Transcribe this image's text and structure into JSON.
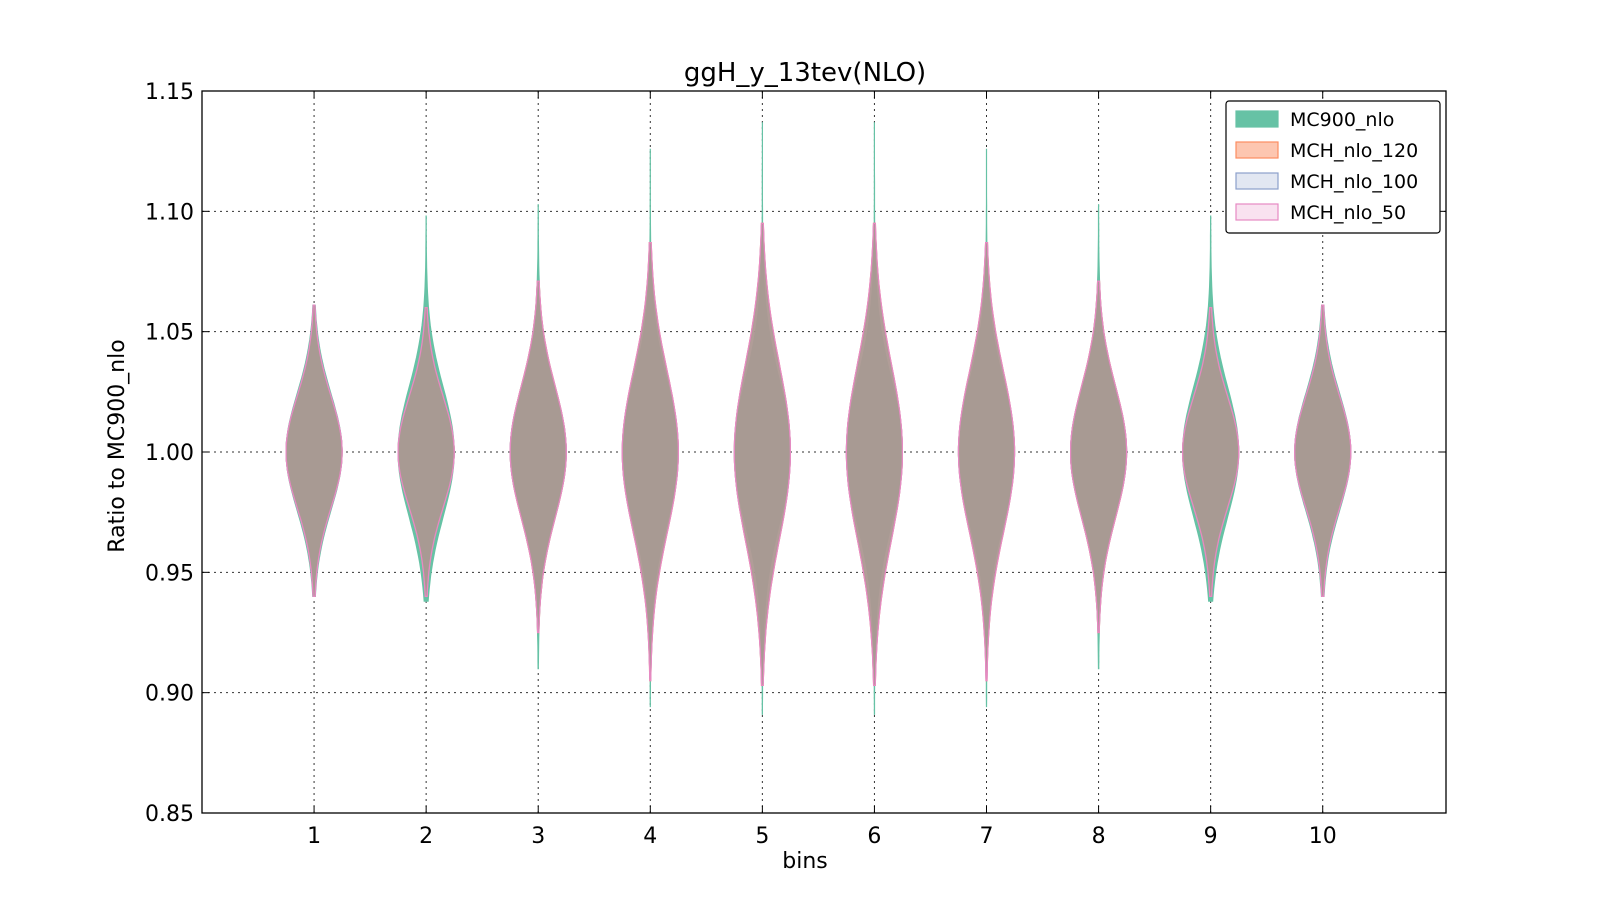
{
  "chart_data": {
    "type": "violin",
    "title": "ggH_y_13tev(NLO)",
    "xlabel": "bins",
    "ylabel": "Ratio to MC900_nlo",
    "categories": [
      "1",
      "2",
      "3",
      "4",
      "5",
      "6",
      "7",
      "8",
      "9",
      "10"
    ],
    "ylim": [
      0.85,
      1.15
    ],
    "xlim": [
      0,
      11.1
    ],
    "yticks": [
      "0.85",
      "0.90",
      "0.95",
      "1.00",
      "1.05",
      "1.10",
      "1.15"
    ],
    "grid": true,
    "legend_position": "top-right",
    "series": [
      {
        "name": "MC900_nlo",
        "color": "#66c2a5",
        "center": 1.0,
        "min": [
          0.94,
          0.938,
          0.91,
          0.894,
          0.891,
          0.891,
          0.894,
          0.91,
          0.938,
          0.94
        ],
        "max": [
          1.061,
          1.098,
          1.103,
          1.126,
          1.137,
          1.137,
          1.126,
          1.103,
          1.098,
          1.061
        ]
      },
      {
        "name": "MCH_nlo_120",
        "color": "#fc8d62",
        "center": 1.0,
        "min": [
          0.94,
          0.94,
          0.925,
          0.905,
          0.903,
          0.903,
          0.905,
          0.925,
          0.94,
          0.94
        ],
        "max": [
          1.061,
          1.06,
          1.071,
          1.087,
          1.095,
          1.095,
          1.087,
          1.071,
          1.06,
          1.061
        ]
      },
      {
        "name": "MCH_nlo_100",
        "color": "#8da0cb",
        "center": 1.0,
        "min": [
          0.94,
          0.94,
          0.926,
          0.906,
          0.904,
          0.904,
          0.906,
          0.926,
          0.94,
          0.94
        ],
        "max": [
          1.061,
          1.059,
          1.07,
          1.086,
          1.094,
          1.094,
          1.086,
          1.07,
          1.059,
          1.061
        ]
      },
      {
        "name": "MCH_nlo_50",
        "color": "#e78ac3",
        "center": 1.0,
        "min": [
          0.94,
          0.94,
          0.927,
          0.907,
          0.905,
          0.905,
          0.907,
          0.927,
          0.94,
          0.94
        ],
        "max": [
          1.061,
          1.059,
          1.069,
          1.085,
          1.093,
          1.093,
          1.085,
          1.069,
          1.059,
          1.061
        ]
      }
    ]
  }
}
